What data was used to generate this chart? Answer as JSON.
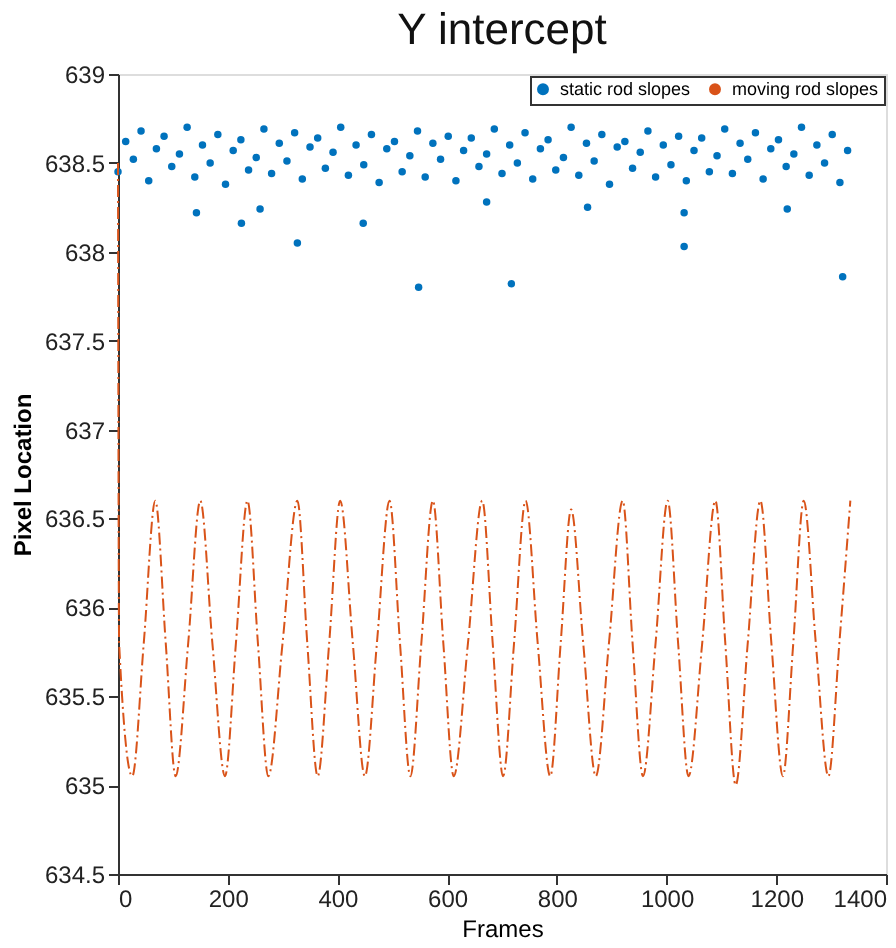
{
  "chart_data": {
    "type": "scatter",
    "title": "Y intercept",
    "xlabel": "Frames",
    "ylabel": "Pixel Location",
    "xlim": [
      0,
      1400
    ],
    "xticks": [
      0,
      200,
      400,
      600,
      800,
      1000,
      1200,
      1400
    ],
    "ylim": [
      634.5,
      639
    ],
    "yticks": [
      634.5,
      635,
      635.5,
      636,
      636.5,
      637,
      637.5,
      638,
      638.5,
      639
    ],
    "grid": false,
    "legend": "top right",
    "series": [
      {
        "name": "static rod slopes",
        "marker": "circle",
        "color": "#0072bd",
        "x": [
          0,
          14,
          28,
          42,
          56,
          70,
          84,
          98,
          112,
          126,
          140,
          154,
          168,
          182,
          196,
          210,
          224,
          238,
          252,
          266,
          280,
          294,
          308,
          322,
          336,
          350,
          364,
          378,
          392,
          406,
          420,
          434,
          448,
          462,
          476,
          490,
          504,
          518,
          532,
          546,
          560,
          574,
          588,
          602,
          616,
          630,
          644,
          658,
          672,
          686,
          700,
          714,
          728,
          742,
          756,
          770,
          784,
          798,
          812,
          826,
          840,
          854,
          868,
          882,
          896,
          910,
          924,
          938,
          952,
          966,
          980,
          994,
          1008,
          1022,
          1036,
          1050,
          1064,
          1078,
          1092,
          1106,
          1120,
          1134,
          1148,
          1162,
          1176,
          1190,
          1204,
          1218,
          1232,
          1246,
          1260,
          1274,
          1288,
          1302,
          1316,
          1330,
          143,
          225,
          259,
          327,
          447,
          548,
          672,
          717,
          856,
          1032,
          1032,
          1220,
          1321
        ],
        "values": [
          638.45,
          638.62,
          638.52,
          638.68,
          638.4,
          638.58,
          638.65,
          638.48,
          638.55,
          638.7,
          638.42,
          638.6,
          638.5,
          638.66,
          638.38,
          638.57,
          638.63,
          638.46,
          638.53,
          638.69,
          638.44,
          638.61,
          638.51,
          638.67,
          638.41,
          638.59,
          638.64,
          638.47,
          638.56,
          638.7,
          638.43,
          638.6,
          638.49,
          638.66,
          638.39,
          638.58,
          638.62,
          638.45,
          638.54,
          638.68,
          638.42,
          638.61,
          638.52,
          638.65,
          638.4,
          638.57,
          638.64,
          638.48,
          638.55,
          638.69,
          638.44,
          638.6,
          638.5,
          638.67,
          638.41,
          638.58,
          638.63,
          638.46,
          638.53,
          638.7,
          638.43,
          638.61,
          638.51,
          638.66,
          638.38,
          638.59,
          638.62,
          638.47,
          638.56,
          638.68,
          638.42,
          638.6,
          638.49,
          638.65,
          638.4,
          638.57,
          638.64,
          638.45,
          638.54,
          638.69,
          638.44,
          638.61,
          638.52,
          638.67,
          638.41,
          638.58,
          638.63,
          638.48,
          638.55,
          638.7,
          638.43,
          638.6,
          638.5,
          638.66,
          638.39,
          638.57,
          638.22,
          638.16,
          638.24,
          638.05,
          638.16,
          637.8,
          638.28,
          637.82,
          638.25,
          638.03,
          638.22,
          638.24,
          637.86
        ]
      },
      {
        "name": "moving rod slopes",
        "type": "line",
        "line_style": "dashed",
        "color": "#d95319",
        "x": [
          0,
          2,
          26,
          47,
          68,
          87,
          105,
          128,
          150,
          172,
          195,
          215,
          236,
          255,
          274,
          300,
          327,
          345,
          364,
          385,
          405,
          428,
          450,
          472,
          495,
          514,
          533,
          553,
          574,
          593,
          612,
          638,
          664,
          683,
          702,
          722,
          743,
          765,
          788,
          807,
          826,
          848,
          871,
          895,
          920,
          938,
          957,
          980,
          1002,
          1021,
          1040,
          1065,
          1089,
          1107,
          1126,
          1148,
          1171,
          1191,
          1212,
          1231,
          1250,
          1272,
          1295,
          1315,
          1335
        ],
        "values": [
          638.5,
          635.8,
          635.05,
          635.8,
          636.6,
          635.8,
          635.05,
          635.8,
          636.6,
          635.8,
          635.05,
          635.8,
          636.6,
          635.8,
          635.05,
          635.8,
          636.6,
          635.8,
          635.05,
          635.8,
          636.6,
          635.8,
          635.05,
          635.8,
          636.6,
          635.8,
          635.05,
          635.8,
          636.6,
          635.8,
          635.05,
          635.8,
          636.6,
          635.8,
          635.05,
          635.8,
          636.6,
          635.8,
          635.05,
          635.8,
          636.55,
          635.8,
          635.05,
          635.8,
          636.6,
          635.8,
          635.05,
          635.8,
          636.6,
          635.8,
          635.05,
          635.8,
          636.6,
          635.8,
          635.0,
          635.8,
          636.6,
          635.8,
          635.05,
          635.8,
          636.6,
          635.8,
          635.05,
          635.8,
          636.6
        ]
      }
    ]
  }
}
